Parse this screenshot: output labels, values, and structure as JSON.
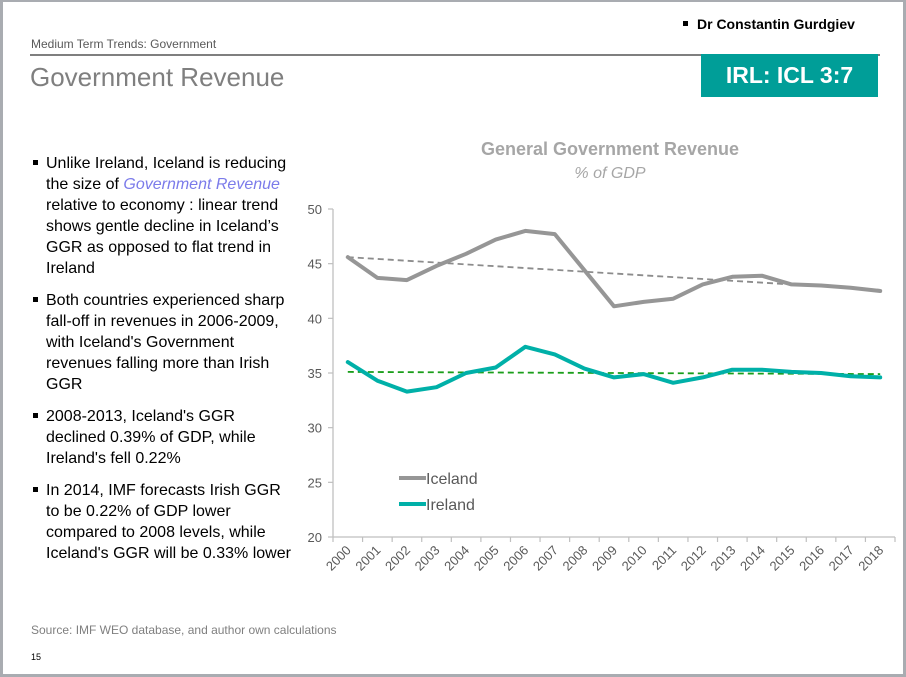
{
  "header": {
    "author": "Dr Constantin Gurdgiev",
    "section": "Medium Term Trends: Government",
    "title": "Government Revenue",
    "badge": "IRL: ICL 3:7",
    "badge_color": "#009e98"
  },
  "bullets": [
    {
      "pre": "Unlike Ireland, Iceland is reducing the size of ",
      "highlight": "Government Revenue",
      "post": " relative to economy : linear trend shows gentle decline in Iceland’s GGR as opposed to flat trend in Ireland"
    },
    {
      "pre": "Both countries experienced sharp fall-off in revenues in 2006-2009, with Iceland's Government revenues falling more than Irish GGR",
      "highlight": "",
      "post": ""
    },
    {
      "pre": "2008-2013, Iceland's GGR declined 0.39% of GDP, while Ireland's fell 0.22%",
      "highlight": "",
      "post": ""
    },
    {
      "pre": "In 2014, IMF forecasts Irish GGR to be 0.22% of GDP lower compared to 2008 levels, while Iceland's GGR will be 0.33% lower",
      "highlight": "",
      "post": ""
    }
  ],
  "footer": {
    "source": "Source: IMF WEO database, and author own calculations",
    "page_number": "15"
  },
  "chart_data": {
    "type": "line",
    "title": "General Government Revenue",
    "subtitle": "% of GDP",
    "xlabel": "",
    "ylabel": "",
    "x": [
      "2000",
      "2001",
      "2002",
      "2003",
      "2004",
      "2005",
      "2006",
      "2007",
      "2008",
      "2009",
      "2010",
      "2011",
      "2012",
      "2013",
      "2014",
      "2015",
      "2016",
      "2017",
      "2018"
    ],
    "ylim": [
      20,
      50
    ],
    "yticks": [
      20,
      25,
      30,
      35,
      40,
      45,
      50
    ],
    "grid": false,
    "legend": "center-left",
    "series": [
      {
        "name": "Iceland",
        "color": "#969696",
        "values": [
          45.6,
          43.7,
          43.5,
          44.8,
          45.9,
          47.2,
          48.0,
          47.7,
          44.4,
          41.1,
          41.5,
          41.8,
          43.1,
          43.8,
          43.9,
          43.1,
          43.0,
          42.8,
          42.5
        ]
      },
      {
        "name": "Ireland",
        "color": "#00b0a8",
        "values": [
          36.0,
          34.3,
          33.3,
          33.7,
          35.0,
          35.5,
          37.4,
          36.7,
          35.4,
          34.6,
          34.9,
          34.1,
          34.6,
          35.3,
          35.3,
          35.1,
          35.0,
          34.7,
          34.6
        ]
      }
    ],
    "trendlines": [
      {
        "name": "Iceland linear trend",
        "color": "#8c8c8c",
        "start": 45.6,
        "end": 42.6
      },
      {
        "name": "Ireland linear trend",
        "color": "#1a9e1a",
        "start": 35.1,
        "end": 34.9
      }
    ]
  }
}
